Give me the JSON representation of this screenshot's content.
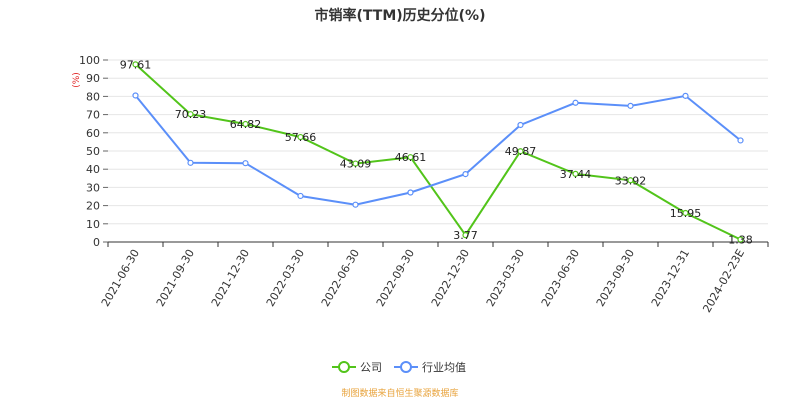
{
  "chart_data": {
    "type": "line",
    "title": "市销率(TTM)历史分位(%)",
    "ylabel": "(%)",
    "ylim": [
      0,
      100
    ],
    "yticks": [
      0,
      10,
      20,
      30,
      40,
      50,
      60,
      70,
      80,
      90,
      100
    ],
    "categories": [
      "2021-06-30",
      "2021-09-30",
      "2021-12-30",
      "2022-03-30",
      "2022-06-30",
      "2022-09-30",
      "2022-12-30",
      "2023-03-30",
      "2023-06-30",
      "2023-09-30",
      "2023-12-31",
      "2024-02-23E"
    ],
    "series": [
      {
        "name": "公司",
        "color": "#52c41a",
        "show_labels": true,
        "values": [
          97.61,
          70.23,
          64.82,
          57.66,
          43.09,
          46.61,
          3.77,
          49.87,
          37.44,
          33.92,
          15.95,
          1.38
        ]
      },
      {
        "name": "行业均值",
        "color": "#5b8ff9",
        "show_labels": false,
        "values": [
          80.5,
          43.5,
          43.3,
          25.3,
          20.5,
          27.2,
          37.3,
          64.3,
          76.5,
          74.8,
          80.3,
          55.8
        ]
      }
    ],
    "grid": true,
    "legend_position": "bottom-center",
    "source": "制图数据来自恒生聚源数据库",
    "source_color": "#e8a33c",
    "unit_color": "#e02020"
  }
}
